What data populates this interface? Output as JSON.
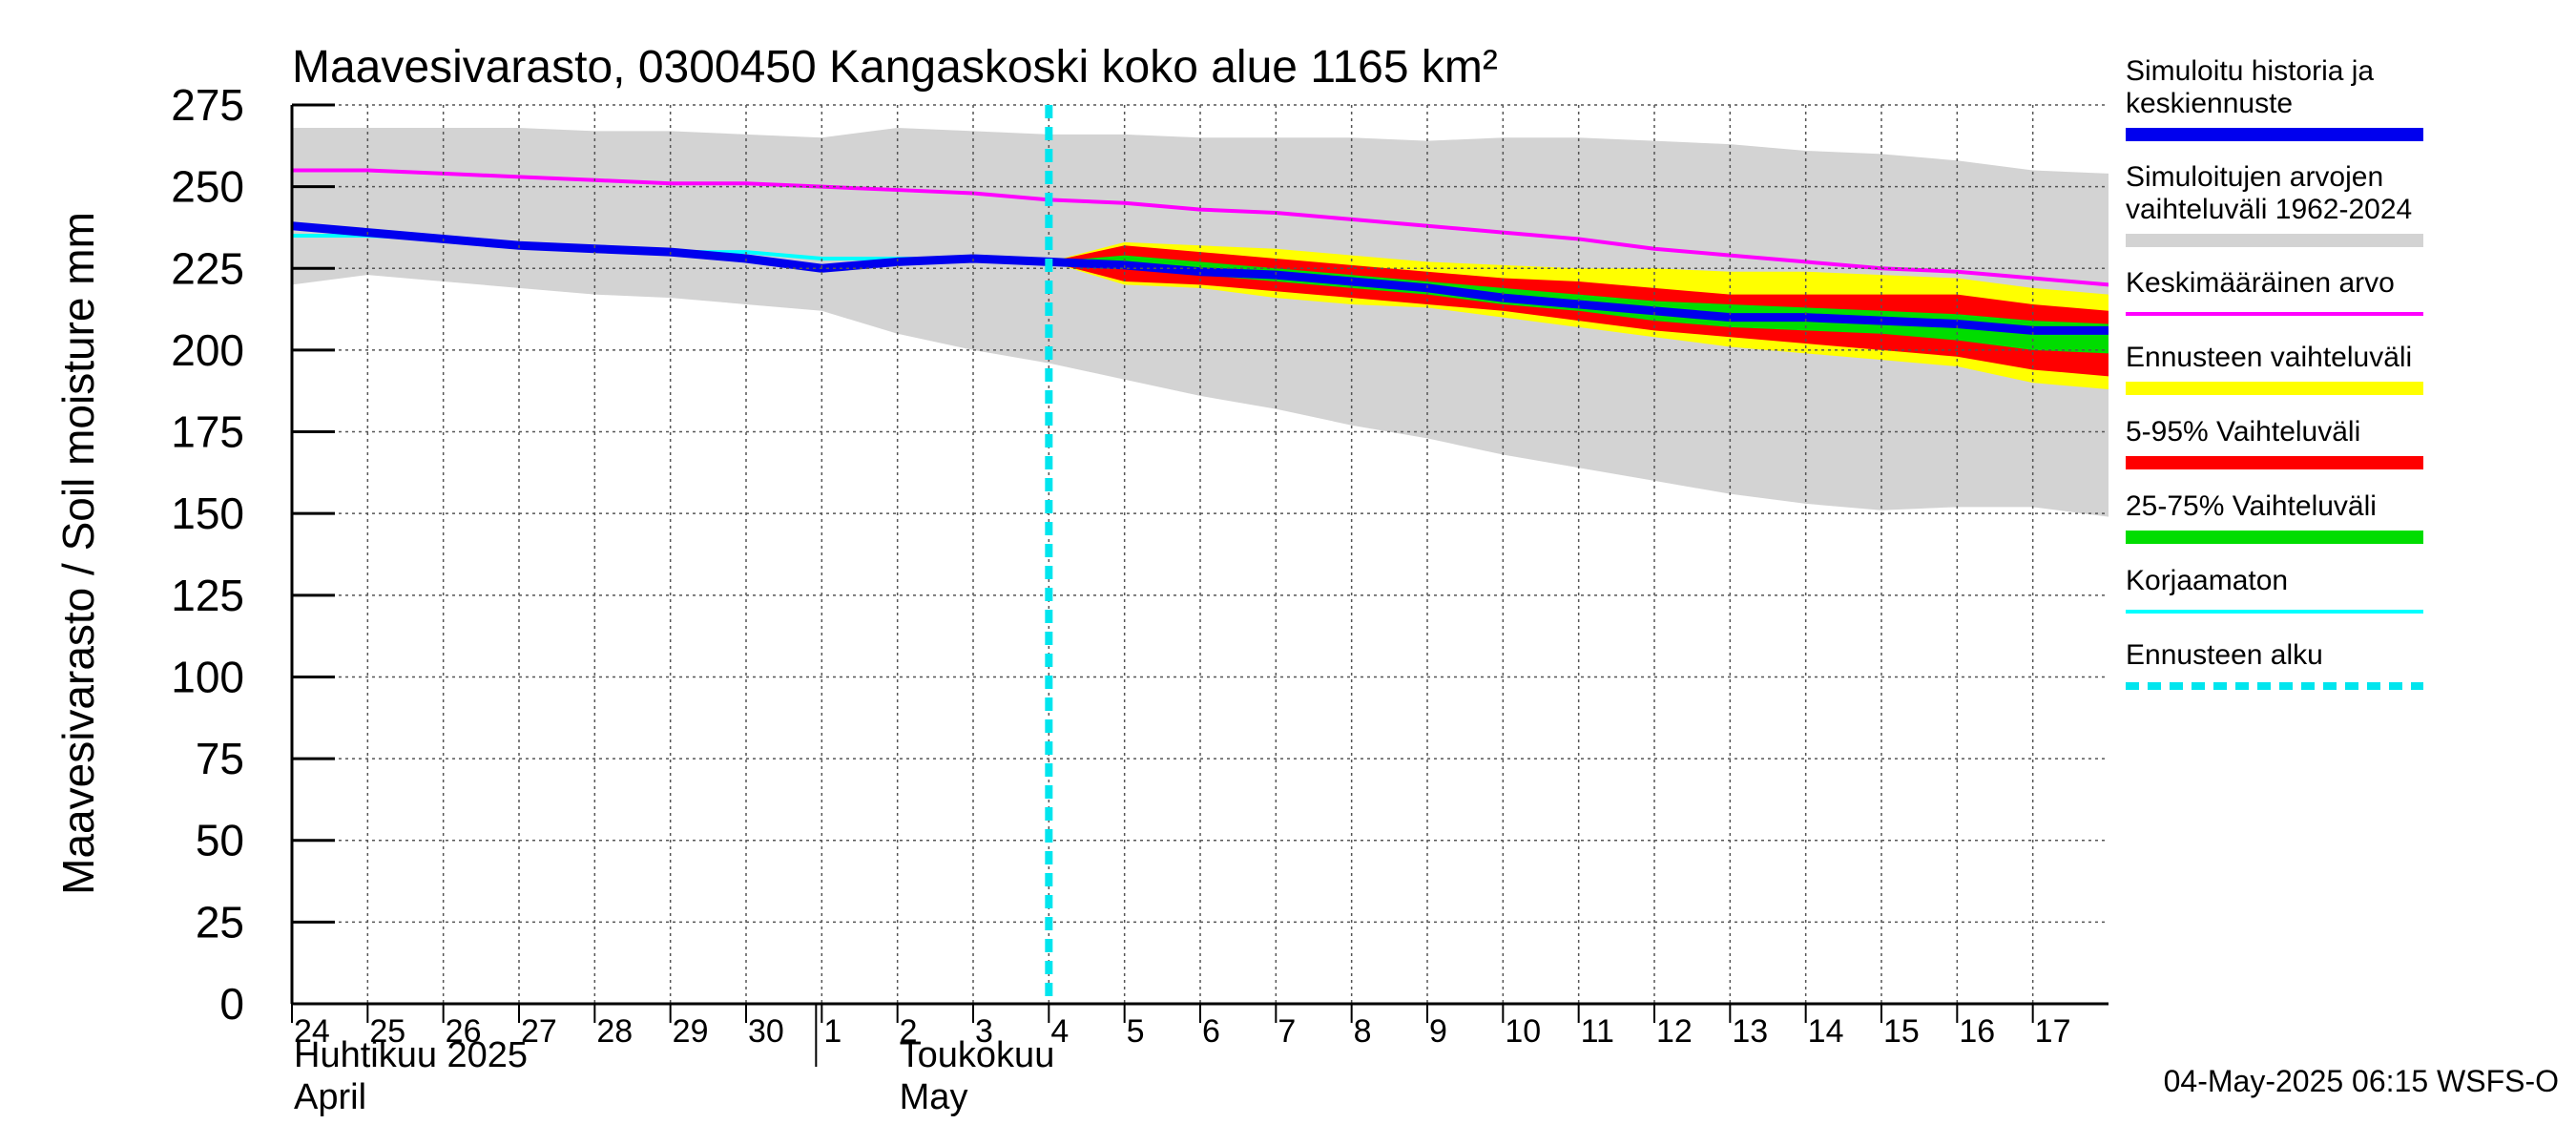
{
  "chart_data": {
    "type": "area",
    "title": "Maavesivarasto, 0300450 Kangaskoski koko alue 1165 km²",
    "ylabel": "Maavesivarasto / Soil moisture   mm",
    "ylim": [
      0,
      275
    ],
    "yticks": [
      0,
      25,
      50,
      75,
      100,
      125,
      150,
      175,
      200,
      225,
      250,
      275
    ],
    "xlim": [
      0,
      24
    ],
    "grid": true,
    "x_tick_labels": [
      "24",
      "25",
      "26",
      "27",
      "28",
      "29",
      "30",
      "1",
      "2",
      "3",
      "4",
      "5",
      "6",
      "7",
      "8",
      "9",
      "10",
      "11",
      "12",
      "13",
      "14",
      "15",
      "16",
      "17"
    ],
    "month_labels": [
      {
        "lines": [
          "Huhtikuu  2025",
          "April"
        ],
        "start": 0
      },
      {
        "lines": [
          "Toukokuu",
          "May"
        ],
        "start": 8
      }
    ],
    "month_divider": 7,
    "forecast_start": 10,
    "x": [
      0,
      1,
      2,
      3,
      4,
      5,
      6,
      7,
      8,
      9,
      10,
      11,
      12,
      13,
      14,
      15,
      16,
      17,
      18,
      19,
      20,
      21,
      22,
      23,
      24
    ],
    "series": [
      {
        "name": "Simuloitujen arvojen vaihteluväli 1962-2024",
        "kind": "band",
        "color": "#d3d3d3",
        "x": [
          0,
          1,
          2,
          3,
          4,
          5,
          6,
          7,
          8,
          9,
          10,
          11,
          12,
          13,
          14,
          15,
          16,
          17,
          18,
          19,
          20,
          21,
          22,
          23,
          24
        ],
        "upper": [
          268,
          268,
          268,
          268,
          267,
          267,
          266,
          265,
          268,
          267,
          266,
          266,
          265,
          265,
          265,
          264,
          265,
          265,
          264,
          263,
          261,
          260,
          258,
          255,
          254
        ],
        "lower": [
          220,
          223,
          221,
          219,
          217,
          216,
          214,
          212,
          205,
          200,
          196,
          191,
          186,
          182,
          177,
          173,
          168,
          164,
          160,
          156,
          153,
          151,
          152,
          152,
          149
        ]
      },
      {
        "name": "Ennusteen vaihteluväli",
        "kind": "band",
        "color": "#ffff00",
        "x": [
          10,
          11,
          12,
          13,
          14,
          15,
          16,
          17,
          18,
          19,
          20,
          21,
          22,
          23,
          24
        ],
        "upper": [
          227,
          233,
          232,
          231,
          229,
          227,
          226,
          225,
          225,
          224,
          224,
          223,
          222,
          219,
          217
        ],
        "lower": [
          227,
          220,
          219,
          216,
          214,
          213,
          210,
          207,
          204,
          201,
          199,
          197,
          195,
          190,
          188
        ]
      },
      {
        "name": "5-95% Vaihteluväli",
        "kind": "band",
        "color": "#ff0000",
        "x": [
          10,
          11,
          12,
          13,
          14,
          15,
          16,
          17,
          18,
          19,
          20,
          21,
          22,
          23,
          24
        ],
        "upper": [
          227,
          232,
          230,
          228,
          226,
          224,
          222,
          221,
          219,
          217,
          217,
          217,
          217,
          214,
          212
        ],
        "lower": [
          227,
          221,
          220,
          218,
          216,
          214,
          212,
          209,
          206,
          204,
          202,
          200,
          198,
          194,
          192
        ]
      },
      {
        "name": "25-75% Vaihteluväli",
        "kind": "band",
        "color": "#00dd00",
        "x": [
          10,
          11,
          12,
          13,
          14,
          15,
          16,
          17,
          18,
          19,
          20,
          21,
          22,
          23,
          24
        ],
        "upper": [
          227,
          229,
          227,
          225,
          223,
          221,
          219,
          217,
          215,
          214,
          213,
          212,
          211,
          209,
          208
        ],
        "lower": [
          227,
          225,
          223,
          221,
          219,
          217,
          214,
          212,
          209,
          207,
          206,
          205,
          203,
          200,
          199
        ]
      },
      {
        "name": "Keskimääräinen arvo",
        "kind": "line",
        "color": "#ff00ff",
        "width": 4,
        "x": [
          0,
          1,
          2,
          3,
          4,
          5,
          6,
          7,
          8,
          9,
          10,
          11,
          12,
          13,
          14,
          15,
          16,
          17,
          18,
          19,
          20,
          21,
          22,
          23,
          24
        ],
        "y": [
          255,
          255,
          254,
          253,
          252,
          251,
          251,
          250,
          249,
          248,
          246,
          245,
          243,
          242,
          240,
          238,
          236,
          234,
          231,
          229,
          227,
          225,
          224,
          222,
          220
        ]
      },
      {
        "name": "Korjaamaton",
        "kind": "line",
        "color": "#00ffff",
        "width": 4,
        "x": [
          0,
          1,
          2,
          3,
          4,
          5,
          6,
          7,
          8,
          9,
          10,
          11,
          12,
          13,
          14,
          15,
          16,
          17,
          18,
          19,
          20,
          21,
          22,
          23,
          24
        ],
        "y": [
          235,
          235,
          234,
          232,
          231,
          230,
          230,
          228,
          228,
          228,
          227,
          226,
          224,
          223,
          221,
          219,
          216,
          214,
          212,
          210,
          210,
          209,
          208,
          206,
          206
        ]
      },
      {
        "name": "Simuloitu historia ja keskiennuste",
        "kind": "line",
        "color": "#0000ee",
        "width": 9,
        "x": [
          0,
          1,
          2,
          3,
          4,
          5,
          6,
          7,
          8,
          9,
          10,
          11,
          12,
          13,
          14,
          15,
          16,
          17,
          18,
          19,
          20,
          21,
          22,
          23,
          24
        ],
        "y": [
          238,
          236,
          234,
          232,
          231,
          230,
          228,
          225,
          227,
          228,
          227,
          226,
          224,
          223,
          221,
          219,
          216,
          214,
          212,
          210,
          210,
          209,
          208,
          206,
          206
        ]
      }
    ],
    "forecast_start_color": "#00e5ee"
  },
  "legend": [
    {
      "lines": [
        "Simuloitu historia ja",
        "keskiennuste"
      ],
      "color": "#0000ee",
      "style": "solid"
    },
    {
      "lines": [
        "Simuloitujen arvojen",
        "vaihteluväli 1962-2024"
      ],
      "color": "#d3d3d3",
      "style": "solid"
    },
    {
      "lines": [
        "Keskimääräinen arvo"
      ],
      "color": "#ff00ff",
      "style": "thin"
    },
    {
      "lines": [
        "Ennusteen vaihteluväli"
      ],
      "color": "#ffff00",
      "style": "solid"
    },
    {
      "lines": [
        "5-95% Vaihteluväli"
      ],
      "color": "#ff0000",
      "style": "solid"
    },
    {
      "lines": [
        "25-75% Vaihteluväli"
      ],
      "color": "#00dd00",
      "style": "solid"
    },
    {
      "lines": [
        "Korjaamaton"
      ],
      "color": "#00ffff",
      "style": "thin"
    },
    {
      "lines": [
        "Ennusteen alku"
      ],
      "color": "#00e5ee",
      "style": "dashed"
    }
  ],
  "footer": "04-May-2025 06:15 WSFS-O"
}
